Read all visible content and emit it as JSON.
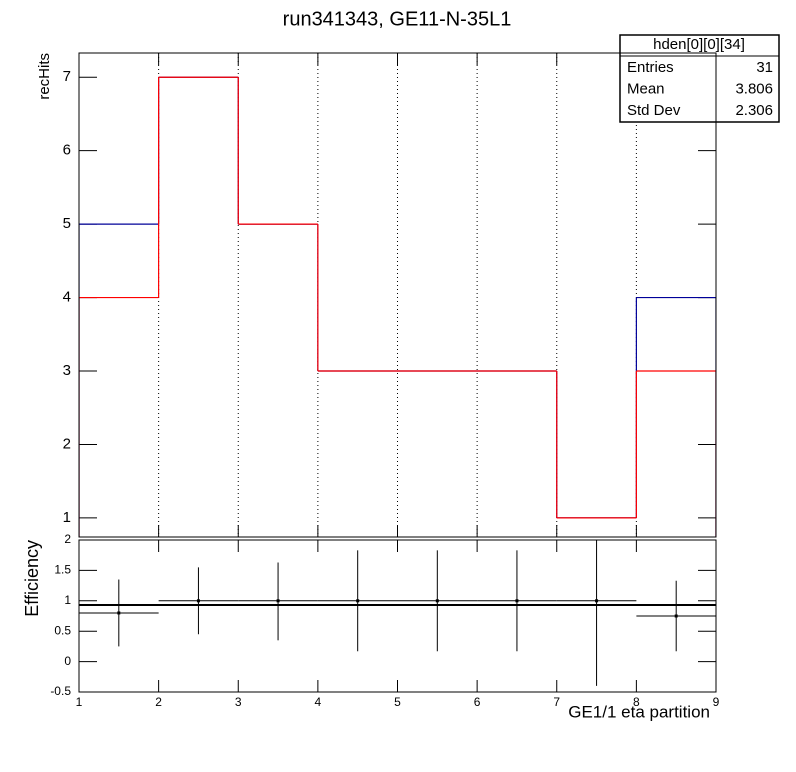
{
  "chart_data": [
    {
      "type": "histogram",
      "title": "run341343, GE11-N-35L1",
      "ylabel": "recHits",
      "bins": [
        1,
        2,
        3,
        4,
        5,
        6,
        7,
        8,
        9
      ],
      "series": [
        {
          "color": "#000099",
          "values": [
            5,
            7,
            5,
            3,
            3,
            3,
            1,
            4
          ]
        },
        {
          "color": "#ff0000",
          "values": [
            4,
            7,
            5,
            3,
            3,
            3,
            1,
            3
          ]
        }
      ],
      "xlim": [
        1,
        9
      ],
      "xticks": [
        1,
        2,
        3,
        4,
        5,
        6,
        7,
        8,
        9
      ],
      "ylim": [
        0.74,
        7.33
      ],
      "yticks": [
        1,
        2,
        3,
        4,
        5,
        6,
        7
      ],
      "grid": true,
      "stats": {
        "title": "hden[0][0][34]",
        "rows": [
          {
            "label": "Entries",
            "value": 31
          },
          {
            "label": "Mean",
            "value": 3.806
          },
          {
            "label": "Std Dev",
            "value": 2.306
          }
        ]
      }
    },
    {
      "type": "errorbar",
      "ylabel": "Efficiency",
      "xlabel": "GE1/1 eta partition",
      "x": [
        1.5,
        2.5,
        3.5,
        4.5,
        5.5,
        6.5,
        7.5,
        8.5
      ],
      "values": [
        0.8,
        1,
        1,
        1,
        1,
        1,
        1,
        0.75
      ],
      "error_low": [
        0.55,
        0.55,
        0.65,
        0.83,
        0.83,
        0.83,
        1.4,
        0.58
      ],
      "error_high": [
        0.55,
        0.55,
        0.63,
        0.83,
        0.83,
        0.83,
        1.0,
        0.58
      ],
      "fit_value": 0.93,
      "color": "#000000",
      "xlim": [
        1,
        9
      ],
      "xticks": [
        1,
        2,
        3,
        4,
        5,
        6,
        7,
        8,
        9
      ],
      "ylim": [
        -0.5,
        2
      ],
      "yticks": [
        -0.5,
        0,
        0.5,
        1,
        1.5,
        2
      ],
      "grid": false
    }
  ]
}
